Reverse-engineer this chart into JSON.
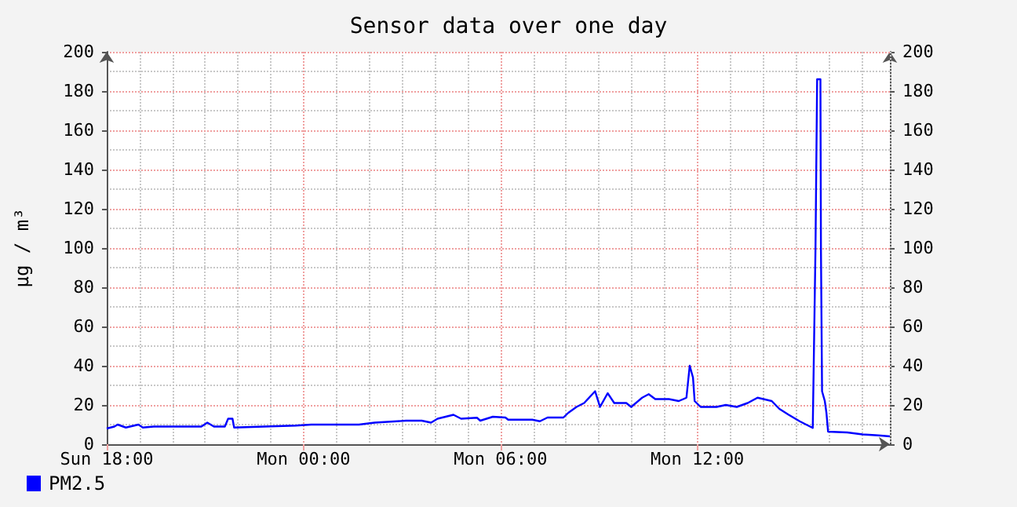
{
  "chart_data": {
    "type": "line",
    "title": "Sensor data over one day",
    "ylabel": "µg / m³",
    "x": [
      "--01-07T18:00",
      "--01-07T18:14",
      "--01-07T18:20",
      "--01-07T18:35",
      "--01-07T18:58",
      "--01-07T19:06",
      "--01-07T19:26",
      "--01-07T20:10",
      "--01-07T20:53",
      "--01-07T21:04",
      "--01-07T21:16",
      "--01-07T21:36",
      "--01-07T21:42",
      "--01-07T21:50",
      "--01-07T21:53",
      "--01-07T22:48",
      "--01-07T23:46",
      "--01-08T00:14",
      "--01-08T01:41",
      "--01-08T02:10",
      "--01-08T03:07",
      "--01-08T03:36",
      "--01-08T03:53",
      "--01-08T04:05",
      "--01-08T04:34",
      "--01-08T04:48",
      "--01-08T05:17",
      "--01-08T05:23",
      "--01-08T05:46",
      "--01-08T06:09",
      "--01-08T06:14",
      "--01-08T06:58",
      "--01-08T07:12",
      "--01-08T07:26",
      "--01-08T07:55",
      "--01-08T08:04",
      "--01-08T08:19",
      "--01-08T08:33",
      "--01-08T08:53",
      "--01-08T09:02",
      "--01-08T09:16",
      "--01-08T09:28",
      "--01-08T09:50",
      "--01-08T09:59",
      "--01-08T10:19",
      "--01-08T10:31",
      "--01-08T10:43",
      "--01-08T11:08",
      "--01-08T11:26",
      "--01-08T11:40",
      "--01-08T11:46",
      "--01-08T11:52",
      "--01-08T11:55",
      "--01-08T12:06",
      "--01-08T12:35",
      "--01-08T12:52",
      "--01-08T13:12",
      "--01-08T13:32",
      "--01-08T13:50",
      "--01-08T14:16",
      "--01-08T14:30",
      "--01-08T14:47",
      "--01-08T15:07",
      "--01-08T15:31",
      "--01-08T15:36",
      "--01-08T15:39",
      "--01-08T15:45",
      "--01-08T15:46",
      "--01-08T15:48",
      "--01-08T15:53",
      "--01-08T15:56",
      "--01-08T15:59",
      "--01-08T16:34",
      "--01-08T17:02",
      "--01-08T17:31",
      "--01-08T17:52"
    ],
    "series": [
      {
        "name": "PM2.5",
        "color": "#0000ff",
        "values": [
          8,
          9,
          10,
          8.5,
          10,
          8.5,
          9,
          9,
          9,
          11,
          9,
          9,
          13,
          13,
          8.5,
          9,
          9.5,
          10,
          10,
          11,
          12,
          12,
          11,
          13,
          15,
          13,
          13.5,
          12,
          14,
          13.6,
          12.5,
          12.5,
          11.7,
          13.6,
          13.6,
          16,
          19,
          21,
          27,
          19,
          26,
          21,
          21,
          19,
          23.7,
          25.5,
          23,
          23,
          22,
          23.7,
          40,
          34,
          22,
          19,
          19,
          20,
          19,
          21,
          23.7,
          22,
          18,
          15,
          11.7,
          8.3,
          100,
          186,
          186,
          98,
          27,
          22,
          16,
          6.4,
          6,
          5,
          4.5,
          4
        ]
      }
    ],
    "xlim": [
      "--01-07T18:00",
      "--01-08T17:52"
    ],
    "xticks": [
      {
        "value": "--01-07T18:00",
        "label": "Sun 18:00"
      },
      {
        "value": "--01-08T00:00",
        "label": "Mon 00:00"
      },
      {
        "value": "--01-08T06:00",
        "label": "Mon 06:00"
      },
      {
        "value": "--01-08T12:00",
        "label": "Mon 12:00"
      }
    ],
    "ylim": [
      0,
      200
    ],
    "yticks": [
      0,
      20,
      40,
      60,
      80,
      100,
      120,
      140,
      160,
      180,
      200
    ],
    "y2lim": [
      0,
      200
    ],
    "y2ticks": [
      0,
      20,
      40,
      60,
      80,
      100,
      120,
      140,
      160,
      180,
      200
    ],
    "grid": true,
    "legend": "bottom left",
    "marker": "none",
    "line_style": "solid"
  }
}
